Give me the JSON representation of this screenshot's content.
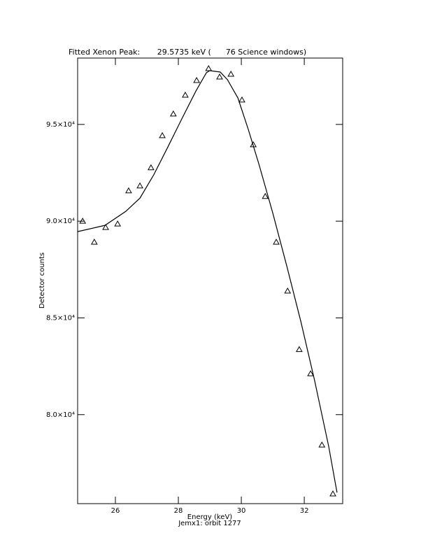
{
  "chart_data": {
    "type": "line",
    "title": "Fitted Xenon Peak:       29.5735 keV (      76 Science windows)",
    "xlabel": "Energy (keV)",
    "subtitle": "Jemx1: orbit 1277",
    "ylabel": "Detector counts",
    "xlim": [
      24.8,
      33.22
    ],
    "ylim": [
      75400,
      98430
    ],
    "xticks": [
      26,
      28,
      30,
      32
    ],
    "yticks": [
      {
        "value": 80000,
        "label": "8.0×10⁴"
      },
      {
        "value": 85000,
        "label": "8.5×10⁴"
      },
      {
        "value": 90000,
        "label": "9.0×10⁴"
      },
      {
        "value": 95000,
        "label": "9.5×10⁴"
      }
    ],
    "series": [
      {
        "color": "#000000",
        "marker": "triangle",
        "x": [
          24.96,
          25.33,
          25.69,
          26.07,
          26.42,
          26.78,
          27.13,
          27.49,
          27.84,
          28.22,
          28.58,
          28.96,
          29.31,
          29.67,
          30.02,
          30.38,
          30.76,
          31.11,
          31.47,
          31.84,
          32.2,
          32.56,
          32.91
        ],
        "values": [
          90000,
          88917,
          89675,
          89856,
          91570,
          91823,
          92762,
          94422,
          95542,
          96516,
          97274,
          97888,
          97455,
          97599,
          96264,
          93953,
          91282,
          88917,
          86390,
          83368,
          82116,
          78434,
          75907
        ]
      },
      {
        "color": "#000000",
        "marker": "none",
        "x": [
          24.8,
          25.67,
          26.33,
          26.78,
          27.22,
          27.67,
          28.11,
          28.56,
          28.89,
          29.0,
          29.33,
          29.56,
          29.89,
          30.22,
          30.56,
          31.0,
          31.44,
          31.89,
          32.33,
          32.78,
          33.04
        ],
        "values": [
          89459,
          89784,
          90506,
          91192,
          92401,
          93845,
          95289,
          96733,
          97672,
          97780,
          97708,
          97311,
          96372,
          94747,
          92942,
          90415,
          87708,
          84820,
          81751,
          78322,
          75975
        ]
      }
    ]
  }
}
